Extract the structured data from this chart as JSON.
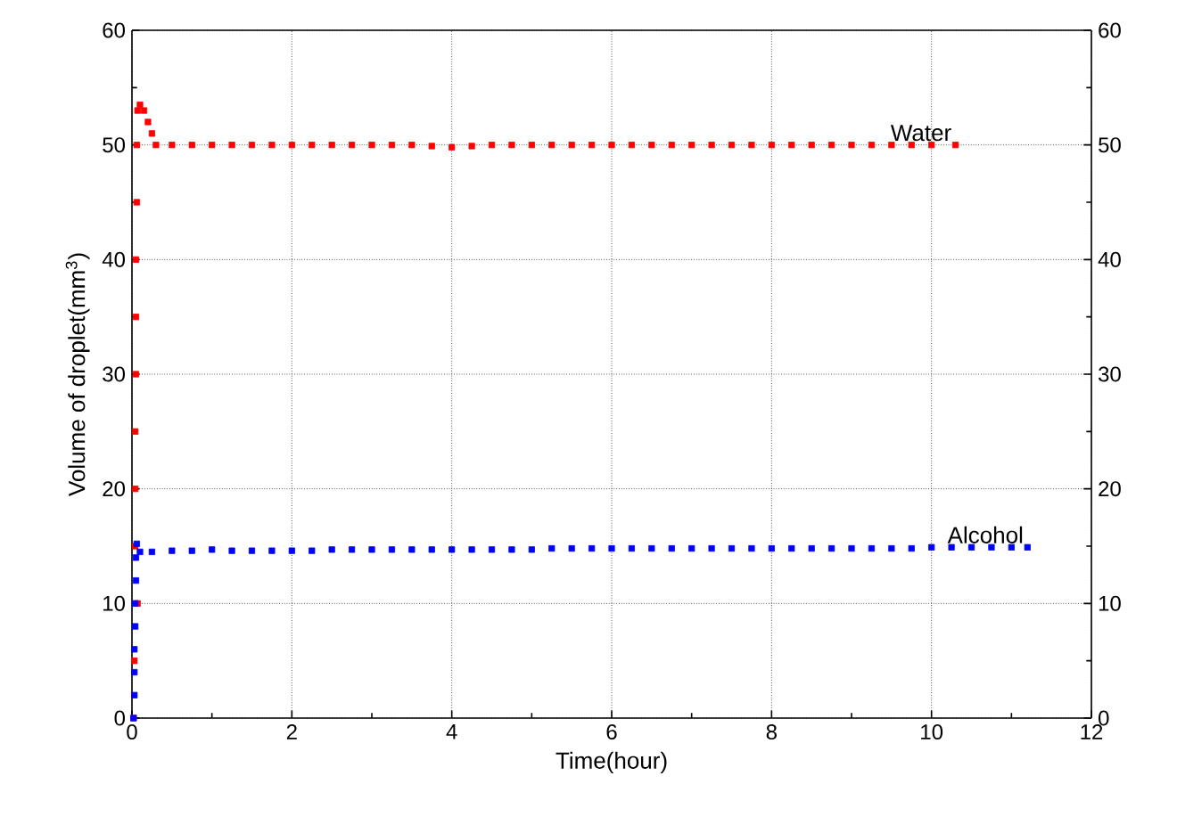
{
  "chart_data": {
    "type": "scatter",
    "xlabel": "Time(hour)",
    "ylabel": "Volume of  droplet(mm$^{3}$)",
    "xlim": [
      0,
      12
    ],
    "xticks": [
      0,
      2,
      4,
      6,
      8,
      10,
      12
    ],
    "ylim": [
      0,
      60
    ],
    "yticks": [
      0,
      10,
      20,
      30,
      40,
      50,
      60
    ],
    "y2lim": [
      0,
      60
    ],
    "y2ticks": [
      0,
      10,
      20,
      30,
      40,
      50,
      60
    ],
    "grid": true,
    "marker": "square",
    "series": [
      {
        "name": "Water",
        "color": "#ff0000",
        "x": [
          0.02,
          0.03,
          0.07,
          0.04,
          0.04,
          0.04,
          0.05,
          0.05,
          0.05,
          0.06,
          0.06,
          0.07,
          0.1,
          0.15,
          0.2,
          0.25,
          0.3,
          0.5,
          0.75,
          1.0,
          1.25,
          1.5,
          1.75,
          2.0,
          2.25,
          2.5,
          2.75,
          3.0,
          3.25,
          3.5,
          3.75,
          4.0,
          4.25,
          4.5,
          4.75,
          5.0,
          5.25,
          5.5,
          5.75,
          6.0,
          6.25,
          6.5,
          6.75,
          7.0,
          7.25,
          7.5,
          7.75,
          8.0,
          8.25,
          8.5,
          8.75,
          9.0,
          9.25,
          9.5,
          9.75,
          10.0,
          10.3
        ],
        "values": [
          0,
          5,
          10,
          15,
          20,
          25,
          30,
          35,
          40,
          45,
          50,
          53,
          53.5,
          53,
          52,
          51,
          50,
          50,
          50,
          50,
          50,
          50,
          50,
          50,
          50,
          50,
          50,
          50,
          50,
          50,
          49.9,
          49.8,
          49.9,
          50,
          50,
          50,
          50,
          50,
          50,
          50,
          50,
          50,
          50,
          50,
          50,
          50,
          50,
          50,
          50,
          50,
          50,
          50,
          50,
          50,
          50,
          50,
          50
        ]
      },
      {
        "name": "Alcohol",
        "color": "#0000ff",
        "x": [
          0.02,
          0.03,
          0.03,
          0.03,
          0.04,
          0.04,
          0.05,
          0.05,
          0.06,
          0.1,
          0.25,
          0.5,
          0.75,
          1.0,
          1.25,
          1.5,
          1.75,
          2.0,
          2.25,
          2.5,
          2.75,
          3.0,
          3.25,
          3.5,
          3.75,
          4.0,
          4.25,
          4.5,
          4.75,
          5.0,
          5.25,
          5.5,
          5.75,
          6.0,
          6.25,
          6.5,
          6.75,
          7.0,
          7.25,
          7.5,
          7.75,
          8.0,
          8.25,
          8.5,
          8.75,
          9.0,
          9.25,
          9.5,
          9.75,
          10.0,
          10.25,
          10.5,
          10.75,
          11.0,
          11.2
        ],
        "values": [
          0,
          2,
          4,
          6,
          8,
          10,
          12,
          14,
          15.2,
          14.5,
          14.5,
          14.6,
          14.6,
          14.7,
          14.6,
          14.6,
          14.6,
          14.6,
          14.6,
          14.7,
          14.7,
          14.7,
          14.7,
          14.7,
          14.7,
          14.7,
          14.7,
          14.7,
          14.7,
          14.7,
          14.8,
          14.8,
          14.8,
          14.8,
          14.8,
          14.8,
          14.8,
          14.8,
          14.8,
          14.8,
          14.8,
          14.8,
          14.8,
          14.8,
          14.8,
          14.8,
          14.8,
          14.8,
          14.8,
          14.9,
          14.9,
          14.9,
          14.9,
          14.9,
          14.9
        ]
      }
    ]
  }
}
